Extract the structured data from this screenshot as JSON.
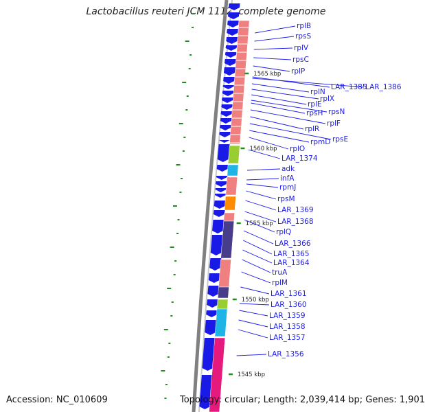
{
  "title": "Lactobacillus reuteri JCM 1112, complete genome",
  "footer": {
    "accession": "Accession: NC_010609",
    "topology": "Topology: circular; Length: 2,039,414 bp; Genes: 1,901"
  },
  "kbp_ticks": [
    "1565 kbp",
    "1560 kbp",
    "1555 kbp",
    "1550 kbp",
    "1545 kbp"
  ],
  "gene_labels": [
    "rplB",
    "rpsS",
    "rplV",
    "rpsC",
    "rplP",
    "LAR_1385",
    "LAR_1386",
    "rplN",
    "rplX",
    "rplE",
    "rpsN",
    "rpsH",
    "rplF",
    "rplR",
    "rpsE",
    "rpmD",
    "rplO",
    "LAR_1374",
    "adk",
    "infA",
    "rpmJ",
    "rpsM",
    "LAR_1369",
    "LAR_1368",
    "rplQ",
    "LAR_1366",
    "LAR_1365",
    "LAR_1364",
    "truA",
    "rplM",
    "LAR_1361",
    "LAR_1360",
    "LAR_1359",
    "LAR_1358",
    "LAR_1357",
    "LAR_1356"
  ],
  "colors": {
    "cds_arrow": "#1a1ae6",
    "ribosomal": "#f08080",
    "lime": "#9acd32",
    "cyan": "#1eb4e6",
    "orange": "#ff8c00",
    "indigo": "#483d8b",
    "magenta": "#e6197d",
    "backbone": "#808080",
    "gc_skew": "#228b22",
    "label": "#1a1ae6"
  }
}
